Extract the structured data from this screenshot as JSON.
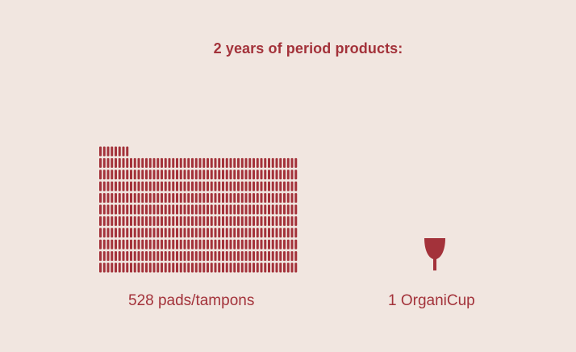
{
  "title": "2 years of period products:",
  "pads": {
    "count": 528,
    "label": "528 pads/tampons",
    "icon": "pad-tampon-icon"
  },
  "cup": {
    "count": 1,
    "label": "1 OrganiCup",
    "icon": "menstrual-cup-icon"
  },
  "colors": {
    "background": "#f1e6e0",
    "accent": "#a3323a"
  }
}
